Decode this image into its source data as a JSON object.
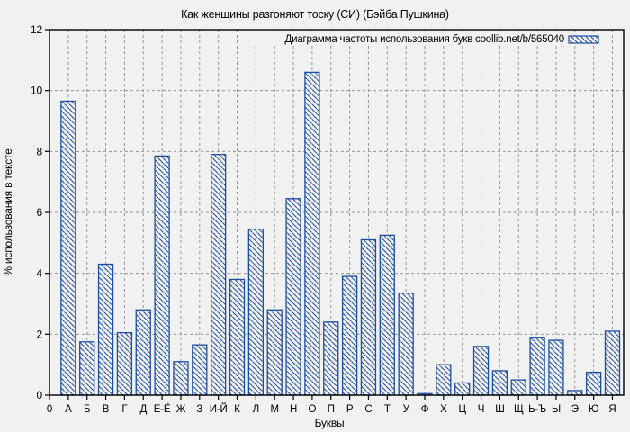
{
  "figure": {
    "background": "#f1f1f1"
  },
  "chart_data": {
    "type": "bar",
    "title": "Как женщины разгоняют тоску (СИ) (Бэйба Пушкина)",
    "xlabel": "Буквы",
    "ylabel": "% использования в тексте",
    "legend": "Диаграмма частоты использования букв coollib.net/b/565040",
    "legend_position": "top-right-inside",
    "ylim": [
      0,
      12
    ],
    "yticks": [
      0,
      2,
      4,
      6,
      8,
      10,
      12
    ],
    "x_axis_origin_label": "0",
    "categories": [
      "А",
      "Б",
      "В",
      "Г",
      "Д",
      "Е-Ё",
      "Ж",
      "З",
      "И-Й",
      "К",
      "Л",
      "М",
      "Н",
      "О",
      "П",
      "Р",
      "С",
      "Т",
      "У",
      "Ф",
      "Х",
      "Ц",
      "Ч",
      "Ш",
      "Щ",
      "Ь-Ъ",
      "Ы",
      "Э",
      "Ю",
      "Я"
    ],
    "values": [
      9.65,
      1.75,
      4.3,
      2.05,
      2.8,
      7.85,
      1.1,
      1.65,
      7.9,
      3.8,
      5.45,
      2.8,
      6.45,
      10.6,
      2.4,
      3.9,
      5.1,
      5.25,
      3.35,
      0.05,
      1.0,
      0.4,
      1.6,
      0.8,
      0.5,
      1.9,
      1.8,
      0.15,
      0.75,
      2.1
    ],
    "grid": true,
    "bar_style": {
      "hatch": "diagonal-down",
      "fill": "background",
      "color": "#1d4da1"
    },
    "colors": {
      "background": "#f1f1f1",
      "bar": "#1d4da1",
      "grid": "#949494",
      "axis": "#000000",
      "text": "#000000"
    }
  }
}
